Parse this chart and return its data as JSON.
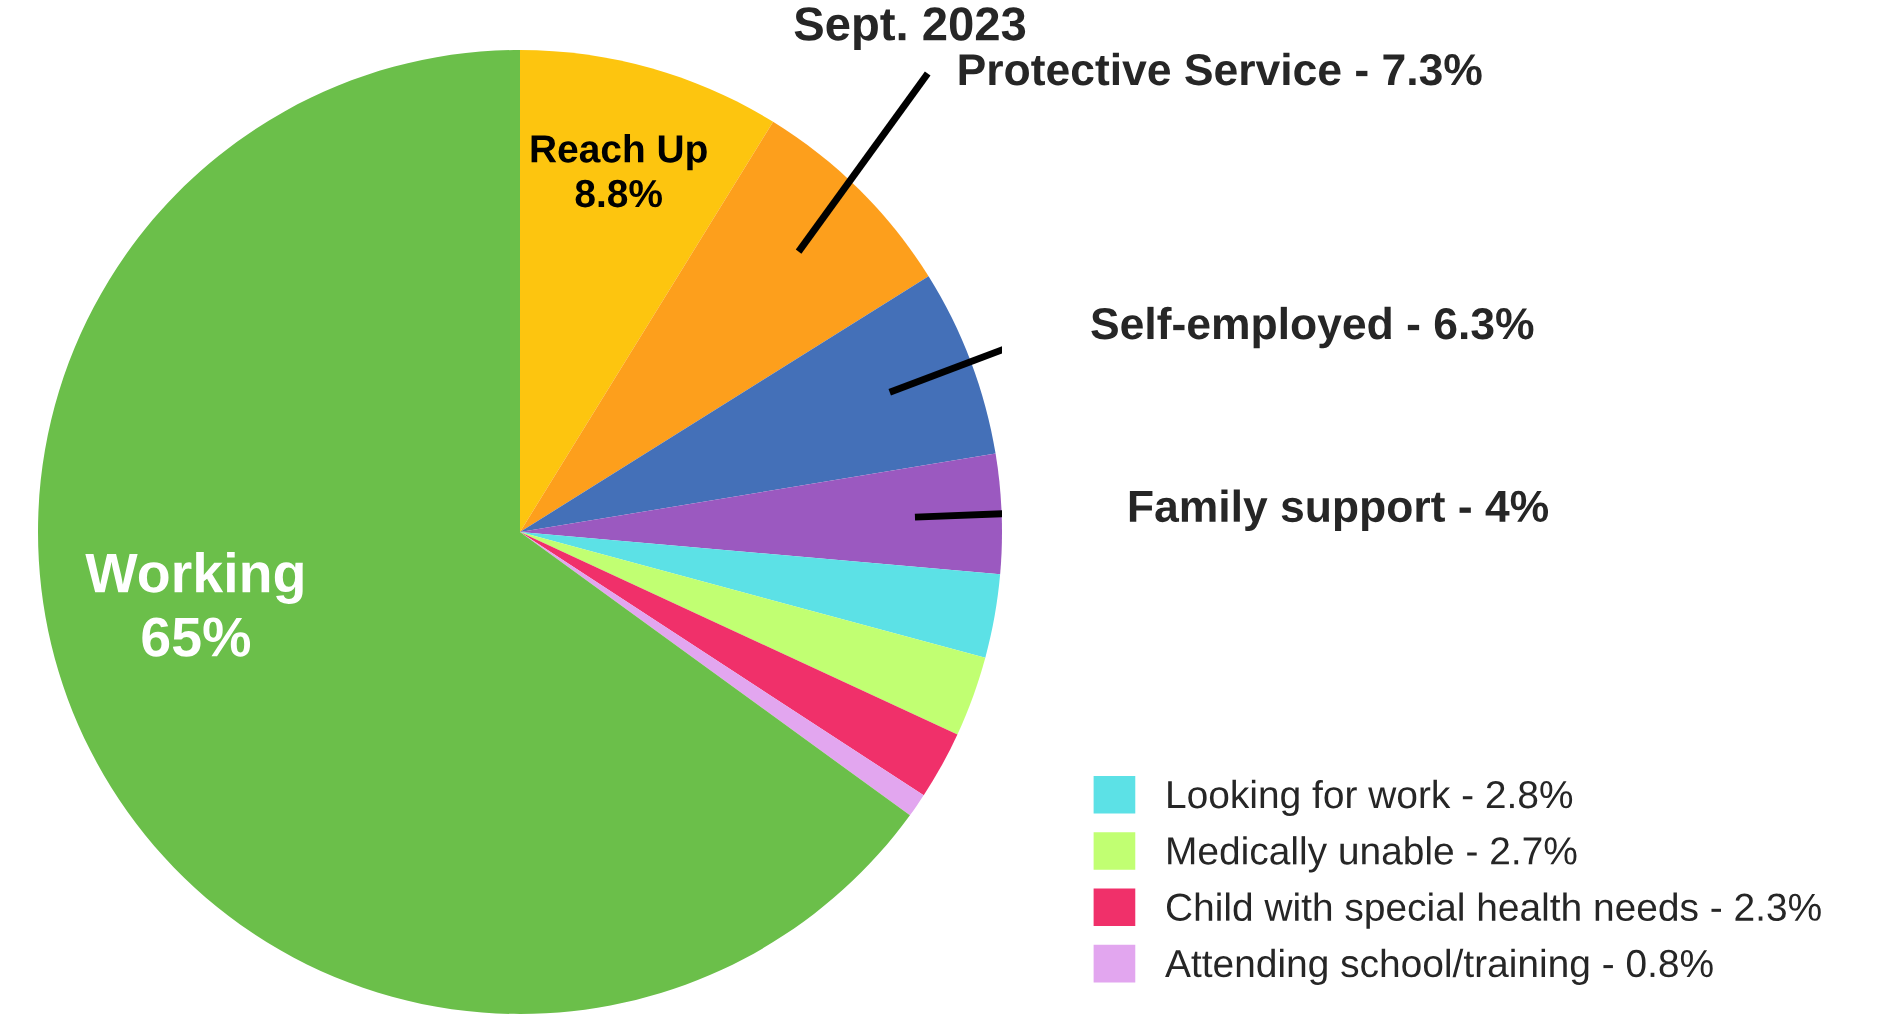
{
  "chart_data": {
    "type": "pie",
    "title": "Sept. 2023",
    "categories": [
      "Reach Up",
      "Protective Service",
      "Self-employed",
      "Family support",
      "Looking for work",
      "Medically unable",
      "Child with special health needs",
      "Attending school/training",
      "Working"
    ],
    "values": [
      8.8,
      7.3,
      6.3,
      4,
      2.8,
      2.7,
      2.3,
      0.8,
      65
    ],
    "value_labels": [
      "8.8%",
      "7.3%",
      "6.3%",
      "4%",
      "2.8%",
      "2.7%",
      "2.3%",
      "0.8%",
      "65%"
    ],
    "colors": [
      "#fdc50f",
      "#fd9f1c",
      "#4470b8",
      "#9b59c0",
      "#5ce1e6",
      "#c1ff72",
      "#f0306a",
      "#e2a6ef",
      "#6bbf4a"
    ],
    "legend": "bottom right"
  }
}
